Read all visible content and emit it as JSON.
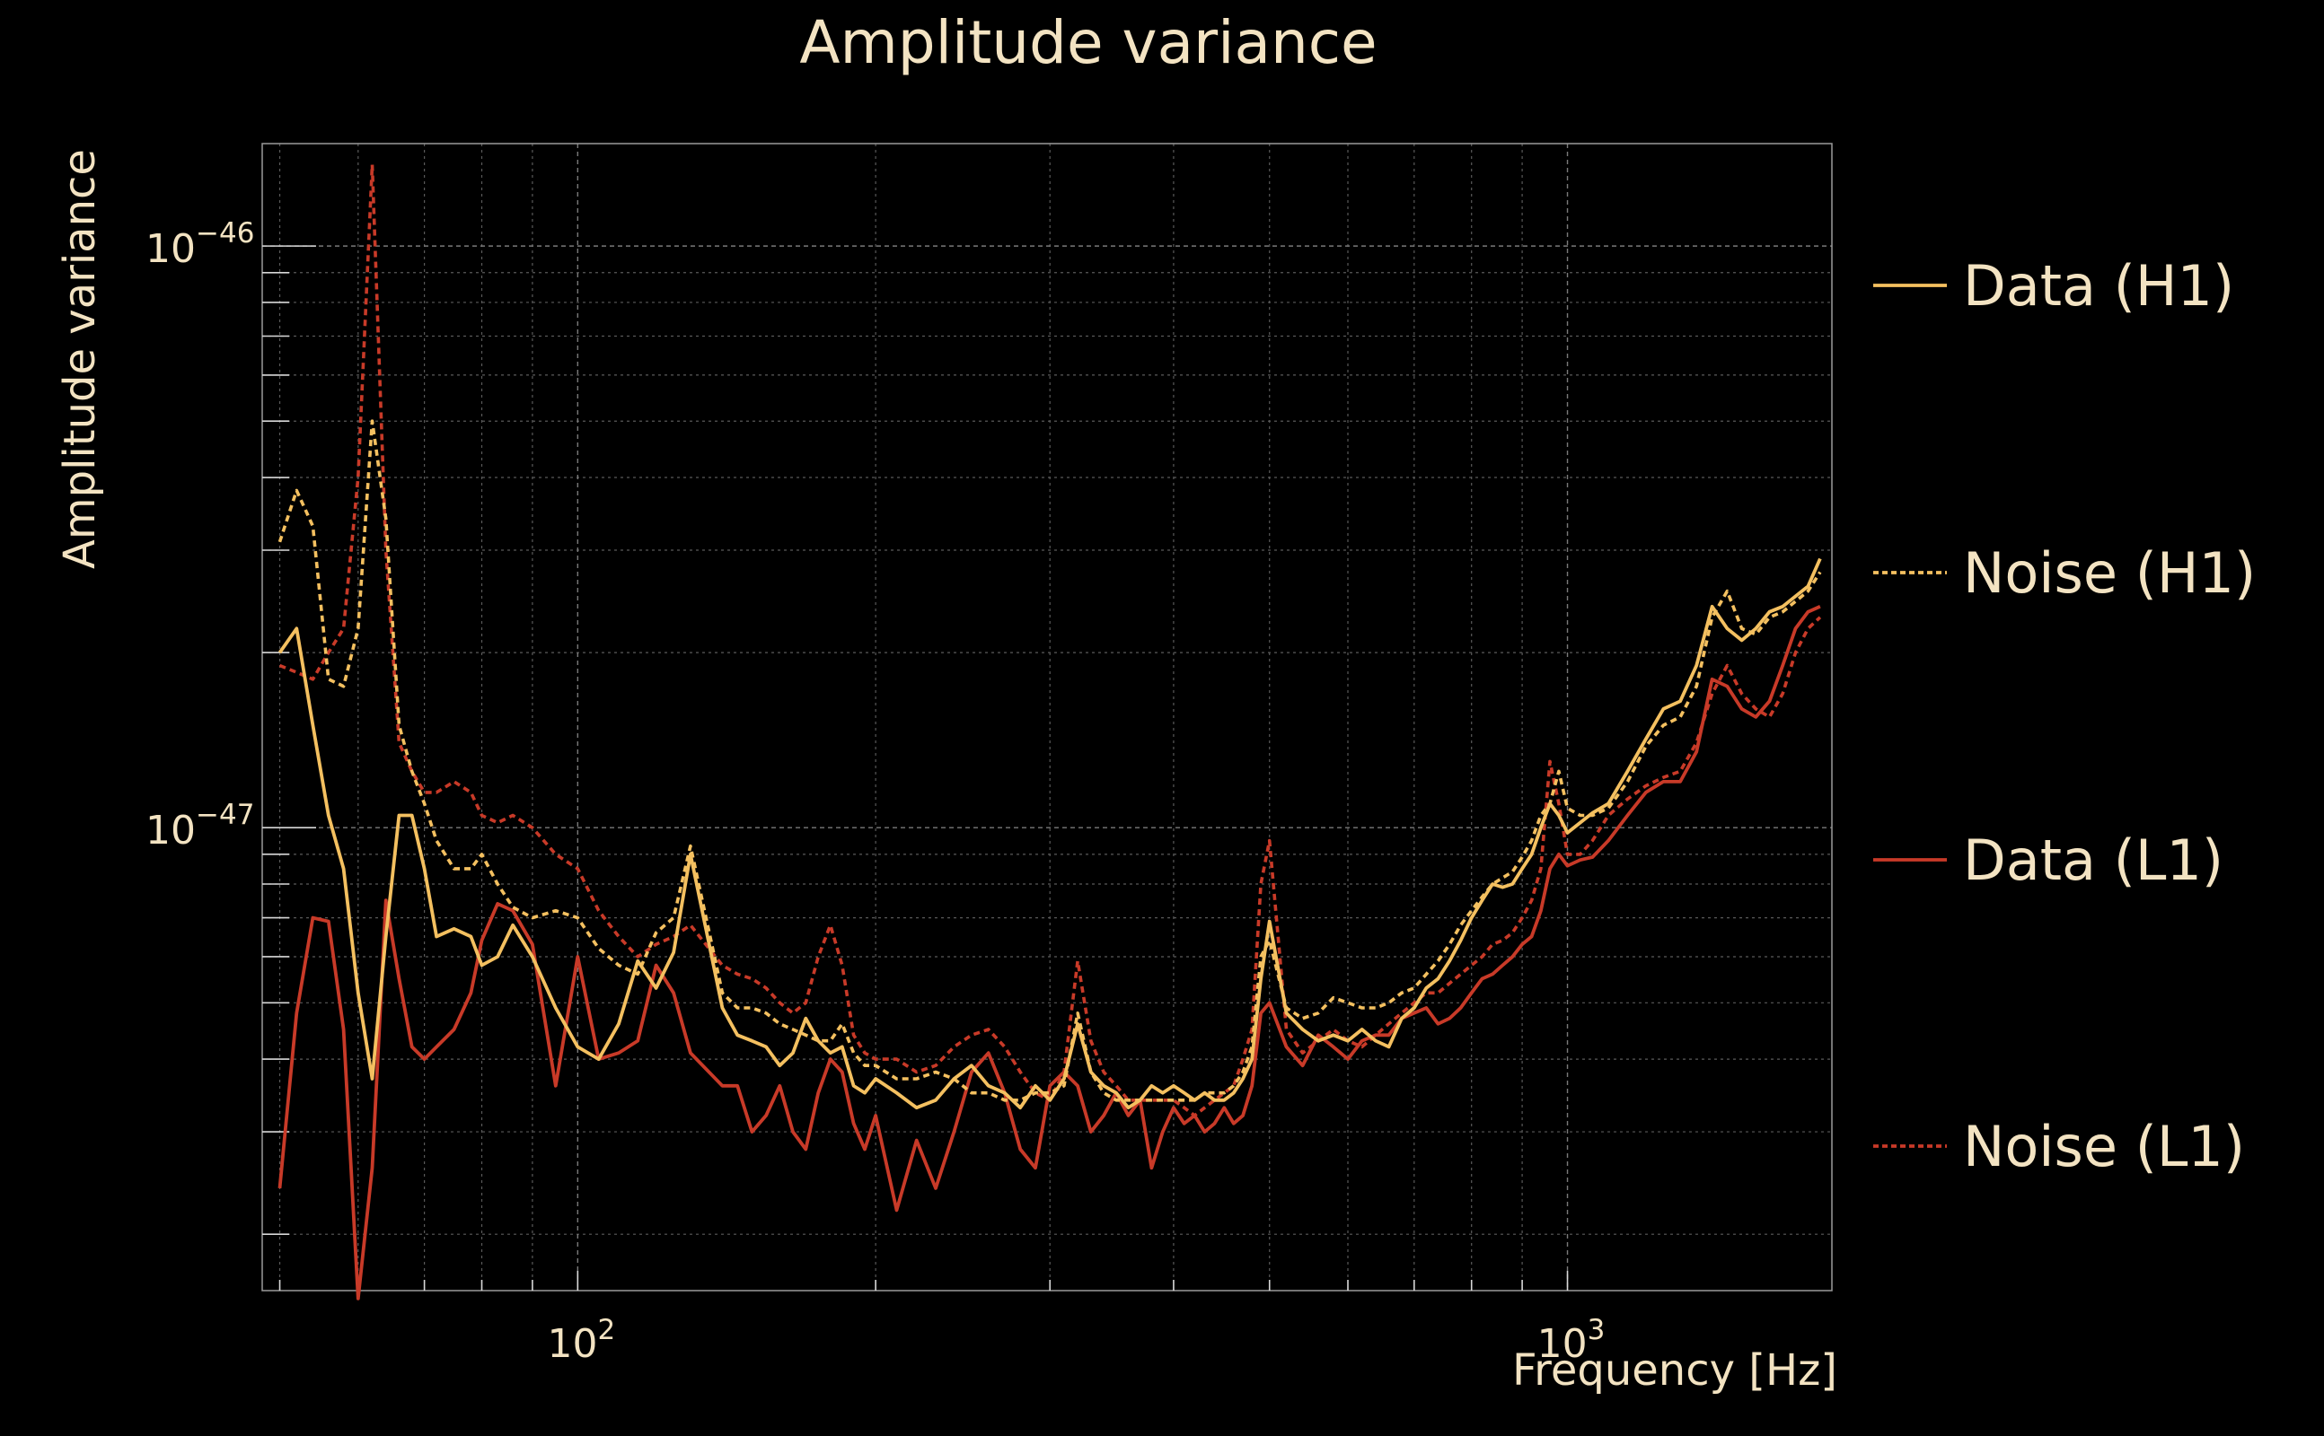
{
  "chart_data": {
    "type": "line",
    "title": "Amplitude variance",
    "xlabel": "Frequency [Hz]",
    "ylabel": "Amplitude variance",
    "xscale": "log",
    "yscale": "log",
    "xlim": [
      48,
      1850
    ],
    "ylim": [
      1.6e-48,
      1.5e-46
    ],
    "x_major_ticks": [
      {
        "value": 100,
        "mantissa": "10",
        "exp": "2"
      },
      {
        "value": 1000,
        "mantissa": "10",
        "exp": "3"
      }
    ],
    "y_major_ticks": [
      {
        "value": 1e-47,
        "mantissa": "10",
        "exp": "−47"
      },
      {
        "value": 1e-46,
        "mantissa": "10",
        "exp": "−46"
      }
    ],
    "grid": true,
    "legend_position": "right",
    "colors": {
      "h1": "#f4c060",
      "l1": "#c83a28",
      "text": "#f3e3c2"
    },
    "x": [
      50,
      52,
      54,
      56,
      58,
      60,
      62,
      64,
      66,
      68,
      70,
      72,
      75,
      78,
      80,
      83,
      86,
      90,
      95,
      100,
      105,
      110,
      115,
      120,
      125,
      130,
      140,
      145,
      150,
      155,
      160,
      165,
      170,
      175,
      180,
      185,
      190,
      195,
      200,
      210,
      220,
      230,
      240,
      250,
      260,
      270,
      280,
      290,
      300,
      310,
      320,
      330,
      340,
      350,
      360,
      370,
      380,
      390,
      400,
      410,
      420,
      430,
      440,
      450,
      460,
      470,
      480,
      490,
      500,
      520,
      540,
      560,
      580,
      600,
      620,
      640,
      660,
      680,
      700,
      720,
      740,
      760,
      780,
      800,
      820,
      840,
      860,
      880,
      900,
      920,
      940,
      960,
      980,
      1000,
      1030,
      1060,
      1100,
      1150,
      1200,
      1250,
      1300,
      1350,
      1400,
      1450,
      1500,
      1550,
      1600,
      1650,
      1700,
      1750,
      1800
    ],
    "series": [
      {
        "name": "Data (H1)",
        "style": "solid",
        "color": "#f4c060",
        "values": [
          2e-47,
          2.2e-47,
          1.5e-47,
          1.05e-47,
          8.5e-48,
          5.2e-48,
          3.7e-48,
          6.5e-48,
          1.05e-47,
          1.05e-47,
          8.5e-48,
          6.5e-48,
          6.7e-48,
          6.5e-48,
          5.8e-48,
          6e-48,
          6.8e-48,
          6e-48,
          4.9e-48,
          4.2e-48,
          4e-48,
          4.6e-48,
          5.9e-48,
          5.3e-48,
          6.1e-48,
          9e-48,
          4.9e-48,
          4.4e-48,
          4.3e-48,
          4.2e-48,
          3.9e-48,
          4.1e-48,
          4.7e-48,
          4.3e-48,
          4.1e-48,
          4.2e-48,
          3.6e-48,
          3.5e-48,
          3.7e-48,
          3.5e-48,
          3.3e-48,
          3.4e-48,
          3.7e-48,
          3.9e-48,
          3.6e-48,
          3.5e-48,
          3.3e-48,
          3.6e-48,
          3.4e-48,
          3.7e-48,
          4.6e-48,
          3.8e-48,
          3.6e-48,
          3.5e-48,
          3.3e-48,
          3.4e-48,
          3.6e-48,
          3.5e-48,
          3.6e-48,
          3.5e-48,
          3.4e-48,
          3.5e-48,
          3.4e-48,
          3.4e-48,
          3.5e-48,
          3.7e-48,
          4e-48,
          5.5e-48,
          6.9e-48,
          4.8e-48,
          4.5e-48,
          4.3e-48,
          4.4e-48,
          4.3e-48,
          4.5e-48,
          4.3e-48,
          4.2e-48,
          4.7e-48,
          4.9e-48,
          5.3e-48,
          5.5e-48,
          5.9e-48,
          6.4e-48,
          7e-48,
          7.5e-48,
          8e-48,
          7.9e-48,
          8e-48,
          8.5e-48,
          9e-48,
          1e-47,
          1.1e-47,
          1.05e-47,
          9.8e-48,
          1.02e-47,
          1.06e-47,
          1.1e-47,
          1.25e-47,
          1.42e-47,
          1.6e-47,
          1.65e-47,
          1.9e-47,
          2.4e-47,
          2.2e-47,
          2.1e-47,
          2.2e-47,
          2.35e-47,
          2.4e-47,
          2.5e-47,
          2.6e-47,
          2.9e-47
        ]
      },
      {
        "name": "Noise (H1)",
        "style": "dotted",
        "color": "#f4c060",
        "values": [
          3.1e-47,
          3.8e-47,
          3.3e-47,
          1.8e-47,
          1.75e-47,
          2.2e-47,
          5e-47,
          3.4e-47,
          1.5e-47,
          1.25e-47,
          1.1e-47,
          9.5e-48,
          8.5e-48,
          8.5e-48,
          9e-48,
          8e-48,
          7.3e-48,
          7e-48,
          7.2e-48,
          7e-48,
          6.2e-48,
          5.8e-48,
          5.6e-48,
          6.6e-48,
          7e-48,
          9.3e-48,
          5.2e-48,
          4.9e-48,
          4.9e-48,
          4.8e-48,
          4.6e-48,
          4.5e-48,
          4.4e-48,
          4.3e-48,
          4.3e-48,
          4.6e-48,
          4.1e-48,
          3.9e-48,
          3.9e-48,
          3.7e-48,
          3.7e-48,
          3.8e-48,
          3.7e-48,
          3.5e-48,
          3.5e-48,
          3.4e-48,
          3.4e-48,
          3.5e-48,
          3.5e-48,
          3.6e-48,
          4.8e-48,
          3.8e-48,
          3.5e-48,
          3.4e-48,
          3.4e-48,
          3.4e-48,
          3.4e-48,
          3.4e-48,
          3.4e-48,
          3.4e-48,
          3.4e-48,
          3.5e-48,
          3.5e-48,
          3.5e-48,
          3.6e-48,
          3.8e-48,
          4.2e-48,
          6e-48,
          6.4e-48,
          4.9e-48,
          4.7e-48,
          4.8e-48,
          5.1e-48,
          5e-48,
          4.9e-48,
          4.9e-48,
          5e-48,
          5.2e-48,
          5.3e-48,
          5.6e-48,
          5.9e-48,
          6.3e-48,
          6.8e-48,
          7.2e-48,
          7.6e-48,
          8e-48,
          8.2e-48,
          8.4e-48,
          8.9e-48,
          9.5e-48,
          1.05e-47,
          1.1e-47,
          1.25e-47,
          1.08e-47,
          1.05e-47,
          1.05e-47,
          1.08e-47,
          1.2e-47,
          1.38e-47,
          1.5e-47,
          1.55e-47,
          1.75e-47,
          2.3e-47,
          2.55e-47,
          2.2e-47,
          2.15e-47,
          2.3e-47,
          2.35e-47,
          2.45e-47,
          2.55e-47,
          2.75e-47
        ]
      },
      {
        "name": "Data (L1)",
        "style": "solid",
        "color": "#c83a28",
        "values": [
          2.4e-48,
          4.8e-48,
          7e-48,
          6.9e-48,
          4.5e-48,
          1.55e-48,
          2.6e-48,
          7.5e-48,
          5.5e-48,
          4.2e-48,
          4e-48,
          4.2e-48,
          4.5e-48,
          5.2e-48,
          6.4e-48,
          7.4e-48,
          7.2e-48,
          6.3e-48,
          3.6e-48,
          6e-48,
          4e-48,
          4.1e-48,
          4.3e-48,
          5.8e-48,
          5.2e-48,
          4.1e-48,
          3.6e-48,
          3.6e-48,
          3e-48,
          3.2e-48,
          3.6e-48,
          3e-48,
          2.8e-48,
          3.5e-48,
          4e-48,
          3.8e-48,
          3.1e-48,
          2.8e-48,
          3.2e-48,
          2.2e-48,
          2.9e-48,
          2.4e-48,
          3e-48,
          3.8e-48,
          4.1e-48,
          3.5e-48,
          2.8e-48,
          2.6e-48,
          3.6e-48,
          3.8e-48,
          3.6e-48,
          3e-48,
          3.2e-48,
          3.5e-48,
          3.2e-48,
          3.4e-48,
          2.6e-48,
          3e-48,
          3.3e-48,
          3.1e-48,
          3.2e-48,
          3e-48,
          3.1e-48,
          3.3e-48,
          3.1e-48,
          3.2e-48,
          3.6e-48,
          4.8e-48,
          5e-48,
          4.2e-48,
          3.9e-48,
          4.4e-48,
          4.2e-48,
          4e-48,
          4.3e-48,
          4.4e-48,
          4.4e-48,
          4.7e-48,
          4.8e-48,
          4.9e-48,
          4.6e-48,
          4.7e-48,
          4.9e-48,
          5.2e-48,
          5.5e-48,
          5.6e-48,
          5.8e-48,
          6e-48,
          6.3e-48,
          6.5e-48,
          7.2e-48,
          8.5e-48,
          9e-48,
          8.6e-48,
          8.8e-48,
          8.9e-48,
          9.5e-48,
          1.05e-47,
          1.15e-47,
          1.2e-47,
          1.2e-47,
          1.35e-47,
          1.8e-47,
          1.75e-47,
          1.6e-47,
          1.55e-47,
          1.65e-47,
          1.9e-47,
          2.2e-47,
          2.35e-47,
          2.4e-47
        ]
      },
      {
        "name": "Noise (L1)",
        "style": "dotted",
        "color": "#c83a28",
        "values": [
          1.9e-47,
          1.85e-47,
          1.8e-47,
          2e-47,
          2.2e-47,
          4e-47,
          1.38e-46,
          3e-47,
          1.4e-47,
          1.25e-47,
          1.15e-47,
          1.15e-47,
          1.2e-47,
          1.15e-47,
          1.05e-47,
          1.02e-47,
          1.05e-47,
          1e-47,
          9e-48,
          8.5e-48,
          7.2e-48,
          6.5e-48,
          6e-48,
          6.3e-48,
          6.5e-48,
          6.8e-48,
          5.8e-48,
          5.6e-48,
          5.5e-48,
          5.3e-48,
          5e-48,
          4.8e-48,
          5e-48,
          6e-48,
          6.8e-48,
          5.8e-48,
          4.4e-48,
          4.1e-48,
          4e-48,
          4e-48,
          3.8e-48,
          3.9e-48,
          4.2e-48,
          4.4e-48,
          4.5e-48,
          4.2e-48,
          3.8e-48,
          3.5e-48,
          3.4e-48,
          3.8e-48,
          5.9e-48,
          4.3e-48,
          3.8e-48,
          3.6e-48,
          3.4e-48,
          3.4e-48,
          3.4e-48,
          3.4e-48,
          3.4e-48,
          3.3e-48,
          3.2e-48,
          3.3e-48,
          3.4e-48,
          3.5e-48,
          3.6e-48,
          4e-48,
          4.5e-48,
          8e-48,
          9.5e-48,
          4.5e-48,
          4.1e-48,
          4.3e-48,
          4.5e-48,
          4.3e-48,
          4.2e-48,
          4.4e-48,
          4.6e-48,
          4.8e-48,
          5e-48,
          5.2e-48,
          5.2e-48,
          5.4e-48,
          5.6e-48,
          5.8e-48,
          6e-48,
          6.3e-48,
          6.4e-48,
          6.6e-48,
          7e-48,
          7.5e-48,
          8.5e-48,
          1.3e-47,
          1.1e-47,
          9e-48,
          9e-48,
          9.5e-48,
          1.05e-47,
          1.12e-47,
          1.18e-47,
          1.22e-47,
          1.25e-47,
          1.4e-47,
          1.7e-47,
          1.9e-47,
          1.7e-47,
          1.6e-47,
          1.55e-47,
          1.7e-47,
          2e-47,
          2.2e-47,
          2.3e-47
        ]
      }
    ]
  }
}
